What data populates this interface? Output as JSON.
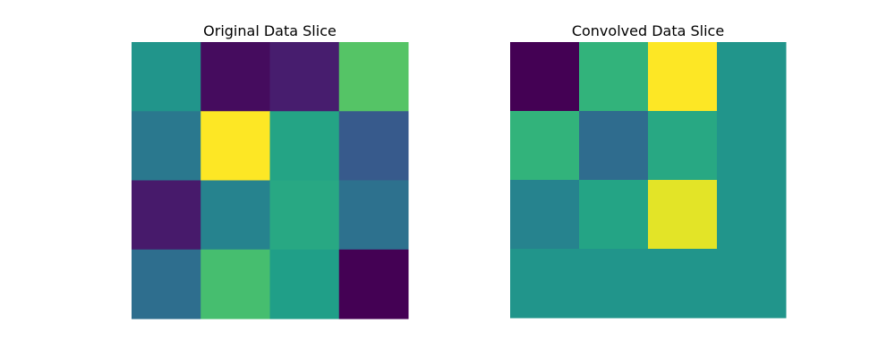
{
  "chart_data": [
    {
      "type": "heatmap",
      "title": "Original Data Slice",
      "xlabel": "",
      "ylabel": "",
      "axes_visible": false,
      "grid": false,
      "colormap": "viridis",
      "rows": 4,
      "cols": 4,
      "values": [
        [
          0.52,
          0.03,
          0.08,
          0.73
        ],
        [
          0.4,
          1.0,
          0.58,
          0.28
        ],
        [
          0.07,
          0.45,
          0.6,
          0.37
        ],
        [
          0.36,
          0.7,
          0.56,
          0.0
        ]
      ]
    },
    {
      "type": "heatmap",
      "title": "Convolved Data Slice",
      "xlabel": "",
      "ylabel": "",
      "axes_visible": false,
      "grid": false,
      "colormap": "viridis",
      "rows": 4,
      "cols": 4,
      "values": [
        [
          0.0,
          0.65,
          1.0,
          0.52
        ],
        [
          0.65,
          0.35,
          0.6,
          0.52
        ],
        [
          0.45,
          0.58,
          0.96,
          0.52
        ],
        [
          0.52,
          0.52,
          0.52,
          0.52
        ]
      ]
    }
  ]
}
